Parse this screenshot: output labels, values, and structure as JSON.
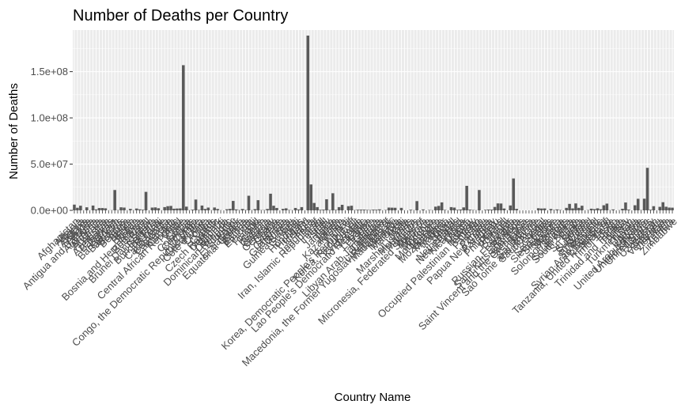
{
  "chart_data": {
    "type": "bar",
    "title": "Number of Deaths per Country",
    "xlabel": "Country Name",
    "ylabel": "Number of Deaths",
    "ylim": [
      0,
      195000000
    ],
    "yticks": [
      {
        "value": 0,
        "label": "0.0e+00"
      },
      {
        "value": 50000000,
        "label": "5.0e+07"
      },
      {
        "value": 100000000,
        "label": "1.0e+08"
      },
      {
        "value": 150000000,
        "label": "1.5e+08"
      }
    ],
    "grid": true,
    "legend": "none",
    "bar_color": "#595959",
    "panel_color": "#ebebeb",
    "grid_color": "#ffffff",
    "categories": [
      "Afghanistan",
      "Albania",
      "Algeria",
      "Andorra",
      "Angola",
      "Antigua and Barbuda",
      "Argentina",
      "Armenia",
      "Australia",
      "Austria",
      "Azerbaijan",
      "Bahamas",
      "Bahrain",
      "Bangladesh",
      "Barbados",
      "Belarus",
      "Belgium",
      "Belize",
      "Benin",
      "Bhutan",
      "Bolivia",
      "Bosnia and Herzegovina",
      "Botswana",
      "Brazil",
      "Brunei Darussalam",
      "Bulgaria",
      "Burkina Faso",
      "Burundi",
      "Cabo Verde",
      "Cambodia",
      "Cameroon",
      "Canada",
      "Central African Republic",
      "Chad",
      "Chile",
      "China",
      "Colombia",
      "Comoros",
      "Congo",
      "Congo, the Democratic Republic of the",
      "Costa Rica",
      "Cote d'Ivoire",
      "Croatia",
      "Cuba",
      "Cyprus",
      "Czech Republic",
      "Denmark",
      "Djibouti",
      "Dominica",
      "Dominican Republic",
      "Ecuador",
      "Egypt",
      "El Salvador",
      "Equatorial Guinea",
      "Eritrea",
      "Estonia",
      "Ethiopia",
      "Fiji",
      "Finland",
      "France",
      "Gabon",
      "Gambia",
      "Georgia",
      "Germany",
      "Ghana",
      "Greece",
      "Grenada",
      "Guatemala",
      "Guinea",
      "Guinea-Bissau",
      "Guyana",
      "Haiti",
      "Honduras",
      "Hungary",
      "Iceland",
      "India",
      "Indonesia",
      "Iran, Islamic Republic of",
      "Iraq",
      "Ireland",
      "Israel",
      "Italy",
      "Jamaica",
      "Japan",
      "Jordan",
      "Kazakhstan",
      "Kenya",
      "Kiribati",
      "Korea, Democratic People's Republic of",
      "Korea, Republic of",
      "Kuwait",
      "Kyrgyzstan",
      "Lao People's Democratic Republic",
      "Latvia",
      "Lebanon",
      "Lesotho",
      "Liberia",
      "Libyan Arab Jamahiriya",
      "Lithuania",
      "Luxembourg",
      "Macedonia, the Former Yugoslav Republic of",
      "Madagascar",
      "Malawi",
      "Malaysia",
      "Maldives",
      "Mali",
      "Malta",
      "Marshall Islands",
      "Mauritania",
      "Mauritius",
      "Mexico",
      "Micronesia, Federated States of",
      "Moldova",
      "Monaco",
      "Mongolia",
      "Montenegro",
      "Morocco",
      "Mozambique",
      "Myanmar",
      "Namibia",
      "Nauru",
      "Nepal",
      "Netherlands",
      "New Zealand",
      "Nicaragua",
      "Niger",
      "Nigeria",
      "Norway",
      "Occupied Palestinian Territory",
      "Oman",
      "Pakistan",
      "Palau",
      "Panama",
      "Papua New Guinea",
      "Paraguay",
      "Peru",
      "Philippines",
      "Poland",
      "Portugal",
      "Qatar",
      "Romania",
      "Russian Federation",
      "Rwanda",
      "Saint Kitts and Nevis",
      "Saint Lucia",
      "Saint Vincent and the Grenadines",
      "Samoa",
      "San Marino",
      "Sao Tome and Principe",
      "Saudi Arabia",
      "Senegal",
      "Serbia",
      "Seychelles",
      "Sierra Leone",
      "Singapore",
      "Slovakia",
      "Slovenia",
      "Solomon Islands",
      "Somalia",
      "South Africa",
      "South Sudan",
      "Spain",
      "Sri Lanka",
      "Sudan",
      "Suriname",
      "Swaziland",
      "Sweden",
      "Switzerland",
      "Syrian Arab Republic",
      "Tajikistan",
      "Tanzania, United Republic of",
      "Thailand",
      "Timor-Leste",
      "Togo",
      "Tonga",
      "Trinidad and Tobago",
      "Tunisia",
      "Turkey",
      "Turkmenistan",
      "Tuvalu",
      "Uganda",
      "Ukraine",
      "United Arab Emirates",
      "United Kingdom",
      "United States",
      "Uruguay",
      "Uzbekistan",
      "Vanuatu",
      "Venezuela",
      "Viet Nam",
      "Yemen",
      "Zambia",
      "Zimbabwe"
    ],
    "values": [
      6200000,
      2800000,
      5000000,
      100000,
      3300000,
      100000,
      5200000,
      1000000,
      2500000,
      2500000,
      2200000,
      100000,
      200000,
      22000000,
      300000,
      3300000,
      3000000,
      100000,
      1600000,
      200000,
      2000000,
      1100000,
      700000,
      20000000,
      50000,
      3000000,
      3200000,
      2300000,
      100000,
      3500000,
      4500000,
      4800000,
      1800000,
      2000000,
      2100000,
      157000000,
      4000000,
      200000,
      800000,
      11700000,
      500000,
      5200000,
      1500000,
      3000000,
      200000,
      3100000,
      1500000,
      200000,
      20000,
      1200000,
      1600000,
      10200000,
      1000000,
      300000,
      1500000,
      400000,
      15800000,
      200000,
      1300000,
      11000000,
      300000,
      300000,
      1500000,
      18000000,
      5000000,
      2600000,
      30000,
      1600000,
      2200000,
      400000,
      200000,
      2600000,
      1000000,
      3500000,
      50000,
      189000000,
      28000000,
      8000000,
      3500000,
      600000,
      800000,
      12000000,
      400000,
      18500000,
      500000,
      3500000,
      6000000,
      20000,
      4500000,
      5000000,
      300000,
      700000,
      800000,
      800000,
      500000,
      400000,
      800000,
      700000,
      1100000,
      100000,
      400000,
      3000000,
      2900000,
      2800000,
      30000,
      2700000,
      100000,
      20000,
      700000,
      200000,
      10000000,
      20000,
      1000000,
      10000,
      400000,
      200000,
      4000000,
      4800000,
      8600000,
      500000,
      5000,
      3500000,
      3000000,
      600000,
      900000,
      3200000,
      26500000,
      800000,
      400000,
      200000,
      22000000,
      3000,
      600000,
      900000,
      800000,
      3700000,
      7500000,
      7400000,
      2000000,
      100000,
      5300000,
      34500000,
      1600000,
      10000,
      30000,
      20000,
      30000,
      5000,
      20000,
      2300000,
      2000000,
      2100000,
      20000,
      1500000,
      400000,
      1000000,
      400000,
      50000,
      2700000,
      7000000,
      2100000,
      7500000,
      2700000,
      5000000,
      50000,
      300000,
      1800000,
      1300000,
      2200000,
      1200000,
      5500000,
      7300000,
      200000,
      1000000,
      20000,
      200000,
      1700000,
      8500000,
      800000,
      1000,
      5500000,
      12500000,
      300000,
      12600000,
      46000000,
      700000,
      4500000,
      40000,
      3800000,
      8800000,
      3900000,
      3000000,
      2900000
    ],
    "visible_xlabels": [
      "Afghanistan",
      "Albania",
      "Algeria",
      "Andorra",
      "Angola",
      "Antigua and Barbuda",
      "Argentina",
      "Armenia",
      "Australia",
      "Austria",
      "Azerbaijan",
      "Bahamas",
      "Bahrain",
      "Bangladesh",
      "Barbados",
      "Belarus",
      "Belgium",
      "Belize",
      "Benin",
      "Bhutan",
      "Bolivia",
      "Bosnia and Herzegovina",
      "Botswana",
      "Brazil",
      "Brunei Darussalam",
      "Bulgaria",
      "Burkina Faso",
      "Burundi",
      "Cabo Verde",
      "Cambodia",
      "Cameroon",
      "Canada",
      "Central African Republic",
      "Chad",
      "Chile",
      "China",
      "Colombia",
      "Comoros",
      "Congo",
      "Congo, the Democratic Republic of the",
      "Costa Rica",
      "Cote d'Ivoire",
      "Croatia",
      "Cuba",
      "Cyprus",
      "Czech Republic",
      "Denmark",
      "Djibouti",
      "Dominica",
      "Dominican Republic",
      "Ecuador",
      "Egypt",
      "El Salvador",
      "Equatorial Guinea",
      "Eritrea",
      "Estonia",
      "Ethiopia",
      "Fiji",
      "Finland",
      "France",
      "Gabon",
      "Gambia",
      "Georgia",
      "Germany",
      "Ghana",
      "Greece",
      "Grenada",
      "Guatemala",
      "Guinea",
      "Guinea-Bissau",
      "Guyana",
      "Haiti",
      "Honduras",
      "Hungary",
      "Iceland",
      "India",
      "Indonesia",
      "Iran, Islamic Republic of",
      "Iraq",
      "Ireland",
      "Israel",
      "Italy",
      "Jamaica",
      "Japan",
      "Jordan",
      "Kazakhstan",
      "Kenya",
      "Kiribati",
      "Korea, Democratic People's Republic of",
      "Korea, Republic of",
      "Kuwait",
      "Kyrgyzstan",
      "Lao People's Democratic Republic",
      "Latvia",
      "Lebanon",
      "Lesotho",
      "Liberia",
      "Libyan Arab Jamahiriya",
      "Lithuania",
      "Luxembourg",
      "Macedonia, the Former Yugoslav Republic of",
      "Madagascar",
      "Malawi",
      "Malaysia",
      "Maldives",
      "Mali",
      "Malta",
      "Marshall Islands",
      "Mauritania",
      "Mauritius",
      "Mexico",
      "Micronesia, Federated States of",
      "Moldova",
      "Monaco",
      "Mongolia",
      "Montenegro",
      "Morocco",
      "Mozambique",
      "Myanmar",
      "Namibia",
      "Nauru",
      "Nepal",
      "Netherlands",
      "New Zealand",
      "Nicaragua",
      "Niger",
      "Nigeria",
      "Norway",
      "Occupied Palestinian Territory",
      "Oman",
      "Pakistan",
      "Palau",
      "Panama",
      "Papua New Guinea",
      "Paraguay",
      "Peru",
      "Philippines",
      "Poland",
      "Portugal",
      "Qatar",
      "Romania",
      "Russian Federation",
      "Rwanda",
      "Saint Kitts and Nevis",
      "Saint Lucia",
      "Saint Vincent and the Grenadines",
      "Samoa",
      "San Marino",
      "Sao Tome and Principe",
      "Saudi Arabia",
      "Senegal",
      "Serbia",
      "Seychelles",
      "Sierra Leone",
      "Singapore",
      "Slovakia",
      "Slovenia",
      "Solomon Islands",
      "Somalia",
      "South Africa",
      "South Sudan",
      "Spain",
      "Sri Lanka",
      "Sudan",
      "Suriname",
      "Swaziland",
      "Sweden",
      "Switzerland",
      "Syrian Arab Republic",
      "Tajikistan",
      "Tanzania, United Republic of",
      "Thailand",
      "Timor-Leste",
      "Togo",
      "Tonga",
      "Trinidad and Tobago",
      "Tunisia",
      "Turkey",
      "Turkmenistan",
      "Tuvalu",
      "Uganda",
      "Ukraine",
      "United Arab Emirates",
      "United Kingdom",
      "United States",
      "Uruguay",
      "Uzbekistan",
      "Vanuatu",
      "Venezuela",
      "Viet Nam",
      "Yemen",
      "Zambia",
      "Zimbabwe"
    ]
  }
}
